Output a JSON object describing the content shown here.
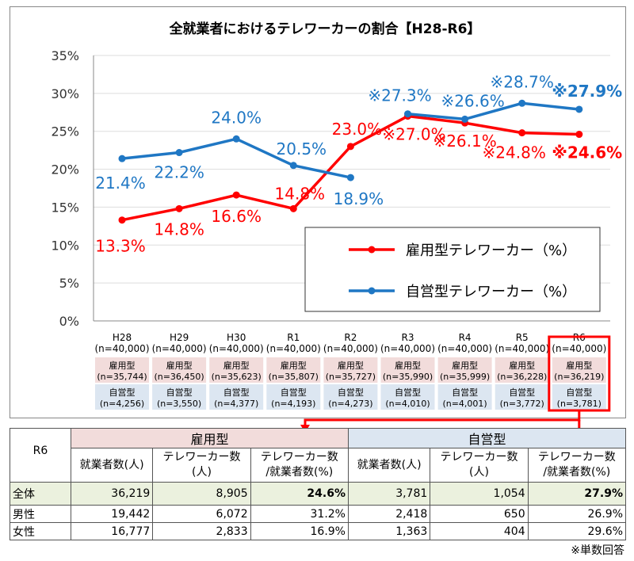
{
  "chart_data": {
    "type": "line",
    "title": "全就業者におけるテレワーカーの割合【H28-R6】",
    "ylim": [
      0,
      35
    ],
    "yticks": [
      "0%",
      "5%",
      "10%",
      "15%",
      "20%",
      "25%",
      "30%",
      "35%"
    ],
    "categories": [
      "H28",
      "H29",
      "H30",
      "R1",
      "R2",
      "R3",
      "R4",
      "R5",
      "R6"
    ],
    "n_total": [
      "(n=40,000)",
      "(n=40,000)",
      "(n=40,000)",
      "(n=40,000)",
      "(n=40,000)",
      "(n=40,000)",
      "(n=40,000)",
      "(n=40,000)",
      "(n=40,000)"
    ],
    "employed_label": "雇用型",
    "employed_n": [
      "(n=35,744)",
      "(n=36,450)",
      "(n=35,623)",
      "(n=35,807)",
      "(n=35,727)",
      "(n=35,990)",
      "(n=35,999)",
      "(n=36,228)",
      "(n=36,219)"
    ],
    "self_label": "自営型",
    "self_n": [
      "(n=4,256)",
      "(n=3,550)",
      "(n=4,377)",
      "(n=4,193)",
      "(n=4,273)",
      "(n=4,010)",
      "(n=4,001)",
      "(n=3,772)",
      "(n=3,781)"
    ],
    "series": [
      {
        "name": "雇用型テレワーカー（%）",
        "color": "#ff0000",
        "values": [
          13.3,
          14.8,
          16.6,
          14.8,
          23.0,
          27.0,
          26.1,
          24.8,
          24.6
        ],
        "labels": [
          "13.3%",
          "14.8%",
          "16.6%",
          "14.8%",
          "23.0%",
          "※27.0%",
          "※26.1%",
          "※24.8%",
          "※24.6%"
        ]
      },
      {
        "name": "自営型テレワーカー（%）",
        "color": "#1f77c4",
        "values": [
          21.4,
          22.2,
          24.0,
          20.5,
          18.9,
          27.3,
          26.6,
          28.7,
          27.9
        ],
        "labels": [
          "21.4%",
          "22.2%",
          "24.0%",
          "20.5%",
          "18.9%",
          "※27.3%",
          "※26.6%",
          "※28.7%",
          "※27.9%"
        ]
      }
    ],
    "highlight_color": "#ff0000"
  },
  "table": {
    "corner": "R6",
    "group1": "雇用型",
    "group2": "自営型",
    "cols": [
      "就業者数(人)",
      "テレワーカー数\n(人)",
      "テレワーカー数\n/就業者数(%)",
      "就業者数(人)",
      "テレワーカー数\n(人)",
      "テレワーカー数\n/就業者数(%)"
    ],
    "rows": [
      {
        "label": "全体",
        "cells": [
          "36,219",
          "8,905",
          "24.6%",
          "3,781",
          "1,054",
          "27.9%"
        ]
      },
      {
        "label": "男性",
        "cells": [
          "19,442",
          "6,072",
          "31.2%",
          "2,418",
          "650",
          "26.9%"
        ]
      },
      {
        "label": "女性",
        "cells": [
          "16,777",
          "2,833",
          "16.9%",
          "1,363",
          "404",
          "29.6%"
        ]
      }
    ]
  },
  "footnote": "※単数回答"
}
